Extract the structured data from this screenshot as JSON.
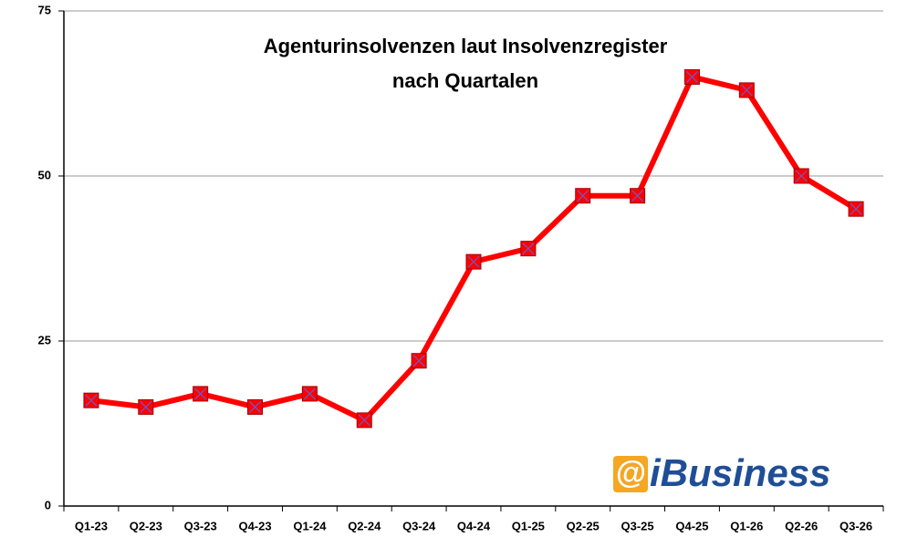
{
  "chart_data": {
    "type": "line",
    "title": [
      "Agenturinsolvenzen laut Insolvenzregister",
      "nach Quartalen"
    ],
    "categories": [
      "Q1-23",
      "Q2-23",
      "Q3-23",
      "Q4-23",
      "Q1-24",
      "Q2-24",
      "Q3-24",
      "Q4-24",
      "Q1-25",
      "Q2-25",
      "Q3-25",
      "Q4-25",
      "Q1-26",
      "Q2-26",
      "Q3-26"
    ],
    "series": [
      {
        "color": "#ff0000",
        "values": [
          16,
          15,
          17,
          15,
          17,
          13,
          22,
          37,
          39,
          47,
          47,
          65,
          63,
          50,
          45
        ]
      }
    ],
    "ylim": [
      0,
      75
    ],
    "yticks": [
      0,
      25,
      50,
      75
    ],
    "grid": true,
    "logo": {
      "mark": "@",
      "text": "iBusiness"
    }
  }
}
